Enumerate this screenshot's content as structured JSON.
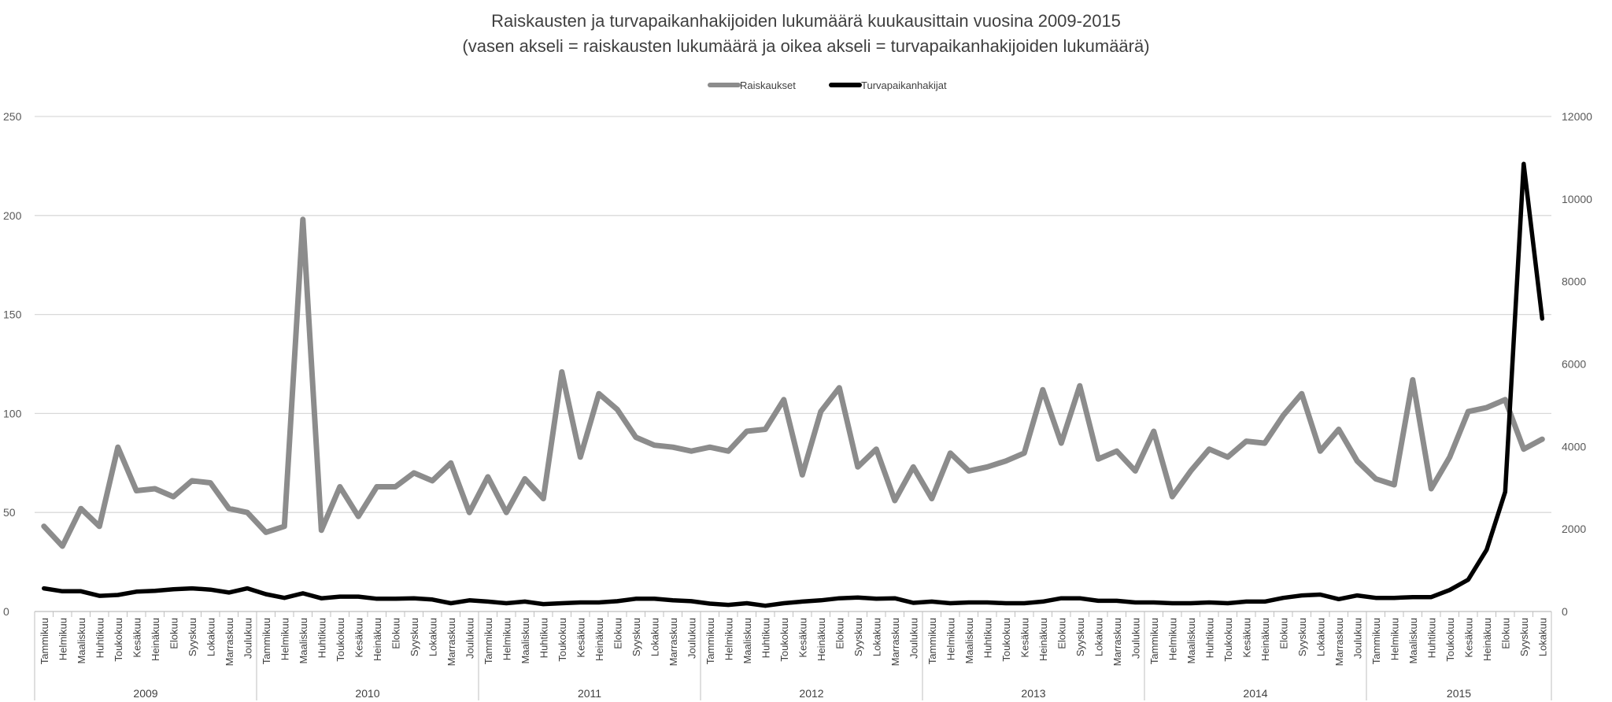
{
  "chart_data": {
    "type": "line",
    "title": "Raiskausten ja turvapaikanhakijoiden lukumäärä kuukausittain vuosina 2009-2015",
    "subtitle": "(vasen akseli = raiskausten lukumäärä ja oikea akseli = turvapaikanhakijoiden lukumäärä)",
    "legend_position": "top",
    "grid": true,
    "months": [
      "Tammikuu",
      "Helmikuu",
      "Maaliskuu",
      "Huhtikuu",
      "Toukokuu",
      "Kesäkuu",
      "Heinäkuu",
      "Elokuu",
      "Syyskuu",
      "Lokakuu",
      "Marraskuu",
      "Joulukuu"
    ],
    "years": [
      "2009",
      "2010",
      "2011",
      "2012",
      "2013",
      "2014",
      "2015"
    ],
    "y_left": {
      "min": 0,
      "max": 250,
      "ticks": [
        "0",
        "50",
        "100",
        "150",
        "200",
        "250"
      ]
    },
    "y_right": {
      "min": 0,
      "max": 12000,
      "ticks": [
        "0",
        "2000",
        "4000",
        "6000",
        "8000",
        "10000",
        "12000"
      ]
    },
    "series": [
      {
        "name": "Raiskaukset",
        "axis": "left",
        "color": "#8c8c8c",
        "values": [
          43,
          33,
          52,
          43,
          83,
          61,
          62,
          58,
          66,
          65,
          52,
          50,
          40,
          43,
          198,
          41,
          63,
          48,
          63,
          63,
          70,
          66,
          75,
          50,
          68,
          50,
          67,
          57,
          121,
          78,
          110,
          102,
          88,
          84,
          83,
          81,
          83,
          81,
          91,
          92,
          107,
          69,
          101,
          113,
          73,
          82,
          56,
          73,
          57,
          80,
          71,
          73,
          76,
          80,
          112,
          85,
          114,
          77,
          81,
          71,
          91,
          58,
          71,
          82,
          78,
          86,
          85,
          99,
          110,
          81,
          92,
          76,
          67,
          64,
          117,
          62,
          78,
          101,
          103,
          107,
          82,
          87
        ]
      },
      {
        "name": "Turvapaikanhakijat",
        "axis": "right",
        "color": "#000000",
        "values": [
          560,
          490,
          490,
          380,
          400,
          480,
          500,
          540,
          560,
          530,
          460,
          560,
          420,
          330,
          440,
          320,
          360,
          360,
          310,
          310,
          320,
          290,
          200,
          270,
          240,
          200,
          240,
          180,
          200,
          220,
          220,
          250,
          310,
          310,
          270,
          250,
          190,
          160,
          200,
          140,
          200,
          240,
          270,
          320,
          340,
          310,
          320,
          210,
          240,
          200,
          220,
          220,
          200,
          200,
          240,
          320,
          320,
          260,
          260,
          220,
          220,
          200,
          200,
          220,
          200,
          240,
          240,
          330,
          390,
          410,
          300,
          390,
          330,
          330,
          350,
          350,
          520,
          770,
          1500,
          2900,
          10850,
          7100
        ]
      }
    ]
  }
}
